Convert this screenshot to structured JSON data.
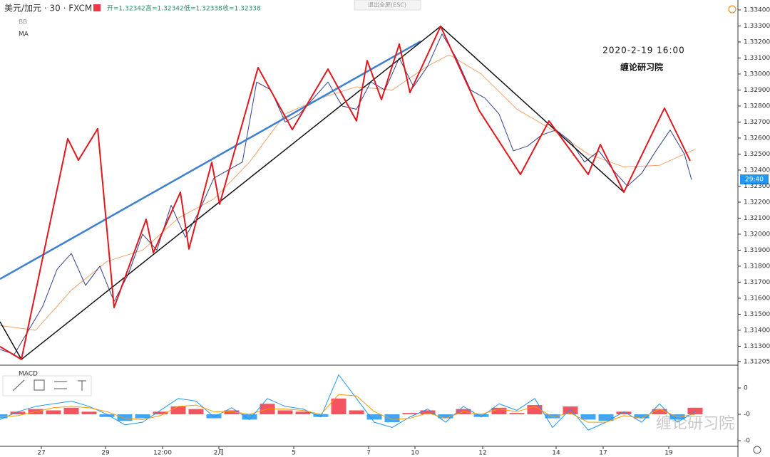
{
  "chart_data": [
    {
      "type": "line",
      "title": "美元/加元 · 30 · FXCM",
      "ohlc": [
        "开=1.32342",
        "高=1.32342",
        "低=1.32338",
        "收=1.32338"
      ],
      "indicators": [
        "BB",
        "MA"
      ],
      "annotations": [
        "2020-2-19 16:00",
        "缠论研习院"
      ],
      "price_tag": "29:40",
      "xlim": [
        0,
        207
      ],
      "ylim": [
        1.31182,
        1.33462
      ],
      "xticks": [
        {
          "value": 11.6,
          "label": "27"
        },
        {
          "value": 29.6,
          "label": "29"
        },
        {
          "value": 45.6,
          "label": "12:00"
        },
        {
          "value": 61.4,
          "label": "2月"
        },
        {
          "value": 82.4,
          "label": "5"
        },
        {
          "value": 103.4,
          "label": "7"
        },
        {
          "value": 116.4,
          "label": "10"
        },
        {
          "value": 135.4,
          "label": "12"
        },
        {
          "value": 156,
          "label": "14"
        },
        {
          "value": 169.2,
          "label": "17"
        },
        {
          "value": 187.6,
          "label": "19"
        }
      ],
      "yticks": [
        {
          "value": 1.334,
          "label": "1.33400"
        },
        {
          "value": 1.333,
          "label": "1.33300"
        },
        {
          "value": 1.332,
          "label": "1.33200"
        },
        {
          "value": 1.331,
          "label": "1.33100"
        },
        {
          "value": 1.33,
          "label": "1.33000"
        },
        {
          "value": 1.329,
          "label": "1.32900"
        },
        {
          "value": 1.328,
          "label": "1.32800"
        },
        {
          "value": 1.327,
          "label": "1.32700"
        },
        {
          "value": 1.326,
          "label": "1.32600"
        },
        {
          "value": 1.325,
          "label": "1.32500"
        },
        {
          "value": 1.324,
          "label": "1.32400"
        },
        {
          "value": 1.323,
          "label": "1.32300"
        },
        {
          "value": 1.322,
          "label": "1.32200"
        },
        {
          "value": 1.321,
          "label": "1.32100"
        },
        {
          "value": 1.32,
          "label": "1.32000"
        },
        {
          "value": 1.319,
          "label": "1.31900"
        },
        {
          "value": 1.318,
          "label": "1.31800"
        },
        {
          "value": 1.317,
          "label": "1.31700"
        },
        {
          "value": 1.316,
          "label": "1.31600"
        },
        {
          "value": 1.315,
          "label": "1.31500"
        },
        {
          "value": 1.314,
          "label": "1.31400"
        },
        {
          "value": 1.313,
          "label": "1.31300"
        },
        {
          "value": 1.31205,
          "label": "1.31205"
        }
      ],
      "series": [
        {
          "color": "#f5a36b",
          "width": 1,
          "x": [
            0,
            10,
            20,
            30,
            40,
            50,
            60,
            70,
            80,
            90,
            100,
            110,
            120,
            126,
            135,
            145,
            155,
            165,
            175,
            185,
            195
          ],
          "values": [
            1.3143,
            1.314,
            1.3165,
            1.3183,
            1.319,
            1.321,
            1.3222,
            1.3245,
            1.3275,
            1.3285,
            1.3292,
            1.329,
            1.3305,
            1.3312,
            1.33,
            1.3278,
            1.3265,
            1.325,
            1.3242,
            1.3243,
            1.3253
          ]
        },
        {
          "color": "#2f3f8f",
          "width": 1,
          "x": [
            0,
            4,
            8,
            12,
            16,
            20,
            24,
            28,
            32,
            36,
            40,
            44,
            48,
            52,
            56,
            60,
            64,
            68,
            72,
            76,
            80,
            84,
            88,
            92,
            96,
            100,
            104,
            108,
            112,
            116,
            120,
            124,
            128,
            132,
            136,
            140,
            144,
            148,
            152,
            156,
            160,
            164,
            168,
            172,
            176,
            180,
            184,
            188,
            192,
            194
          ],
          "values": [
            1.3128,
            1.3125,
            1.314,
            1.3155,
            1.3178,
            1.3188,
            1.3168,
            1.318,
            1.3158,
            1.3175,
            1.32,
            1.319,
            1.3218,
            1.3198,
            1.3215,
            1.3235,
            1.324,
            1.3245,
            1.3295,
            1.329,
            1.327,
            1.3275,
            1.3285,
            1.3295,
            1.328,
            1.3278,
            1.3295,
            1.329,
            1.331,
            1.3292,
            1.3305,
            1.3325,
            1.331,
            1.329,
            1.3285,
            1.3275,
            1.3252,
            1.3255,
            1.3262,
            1.3265,
            1.3258,
            1.3245,
            1.3252,
            1.324,
            1.323,
            1.3238,
            1.3252,
            1.3265,
            1.325,
            1.3234
          ]
        },
        {
          "color": "#3d7fd0",
          "width": 2.5,
          "x": [
            0,
            118
          ],
          "values": [
            1.3172,
            1.33204
          ]
        },
        {
          "color": "#111111",
          "width": 1.5,
          "x": [
            0,
            6,
            123.6,
            175
          ],
          "values": [
            1.31453,
            1.31218,
            1.33298,
            1.32262
          ]
        },
        {
          "color": "#e0181e",
          "width": 2,
          "x": [
            0,
            6,
            19,
            22,
            27.4,
            32,
            41,
            43,
            50.6,
            53,
            59.4,
            61.6,
            72.4,
            82,
            92,
            100,
            103,
            107,
            112,
            115,
            123.6,
            134.4,
            146,
            154,
            165,
            168.4,
            175,
            186.4,
            193.6
          ],
          "values": [
            1.31298,
            1.31218,
            1.32596,
            1.32462,
            1.32658,
            1.31542,
            1.32093,
            1.31884,
            1.32262,
            1.31907,
            1.32449,
            1.32187,
            1.3304,
            1.32653,
            1.33031,
            1.32707,
            1.33084,
            1.3284,
            1.33187,
            1.32884,
            1.33298,
            1.32773,
            1.32373,
            1.32707,
            1.32373,
            1.3256,
            1.32262,
            1.32787,
            1.32458
          ]
        }
      ]
    },
    {
      "type": "macd",
      "title": "MACD",
      "xlim": [
        0,
        207
      ],
      "ylim": [
        -0.000243,
        0.000373
      ],
      "yticks": [
        {
          "value": 0.0002,
          "label": "0"
        },
        {
          "value": 0,
          "label": "-0"
        },
        {
          "value": -0.0002,
          "label": "-0"
        }
      ],
      "watermark": "缠论研习院",
      "x": [
        0,
        5,
        10,
        15,
        20,
        25,
        30,
        35,
        40,
        45,
        50,
        55,
        60,
        65,
        70,
        75,
        80,
        85,
        90,
        95,
        100,
        105,
        110,
        115,
        120,
        125,
        130,
        135,
        140,
        145,
        150,
        155,
        160,
        165,
        170,
        175,
        180,
        185,
        190,
        195
      ],
      "histogram": {
        "colors": [
          "#f23645",
          "#2196f3"
        ],
        "values": [
          -3e-05,
          2e-05,
          4e-05,
          3e-05,
          5e-05,
          2e-05,
          -2e-05,
          -5e-05,
          -3e-05,
          2e-05,
          6e-05,
          4e-05,
          -3e-05,
          3e-05,
          -4e-05,
          8e-05,
          3e-05,
          2e-05,
          -2e-05,
          0.00012,
          3e-05,
          -4e-05,
          -6e-05,
          1e-05,
          3e-05,
          -3e-05,
          4e-05,
          -2e-05,
          5e-05,
          1e-05,
          7e-05,
          -3e-05,
          6e-05,
          -4e-05,
          -5e-05,
          2e-05,
          -3e-05,
          4e-05,
          -4e-05,
          5e-05
        ]
      },
      "series": [
        {
          "color": "#2196f3",
          "values": [
            -4e-05,
            2e-05,
            6e-05,
            8e-05,
            0.0001,
            6e-05,
            0,
            -8e-05,
            -6e-05,
            3e-05,
            0.00012,
            0.0001,
            -2e-05,
            5e-05,
            -4e-05,
            0.00012,
            6e-05,
            4e-05,
            -2e-05,
            0.0003,
            0.00012,
            -6e-05,
            -0.0001,
            -2e-05,
            4e-05,
            -6e-05,
            6e-05,
            -2e-05,
            8e-05,
            3e-05,
            0.00012,
            -0.0001,
            4e-05,
            -0.00012,
            -6e-05,
            2e-05,
            -6e-05,
            8e-05,
            -6e-05,
            2e-05
          ]
        },
        {
          "color": "#ff9800",
          "values": [
            -2e-05,
            -1e-05,
            2e-05,
            5e-05,
            6e-05,
            5e-05,
            2e-05,
            -3e-05,
            -4e-05,
            -1e-05,
            6e-05,
            7e-05,
            2e-05,
            2e-05,
            0,
            4e-05,
            4e-05,
            3e-05,
            0,
            0.00015,
            0.00014,
            2e-05,
            -4e-05,
            -3e-05,
            1e-05,
            -3e-05,
            2e-05,
            0,
            4e-05,
            2e-05,
            6e-05,
            -2e-05,
            1e-05,
            -6e-05,
            -6e-05,
            -1e-05,
            -3e-05,
            4e-05,
            -2e-05,
            0
          ]
        }
      ]
    }
  ],
  "fullscreen": "退出全屏(ESC)"
}
